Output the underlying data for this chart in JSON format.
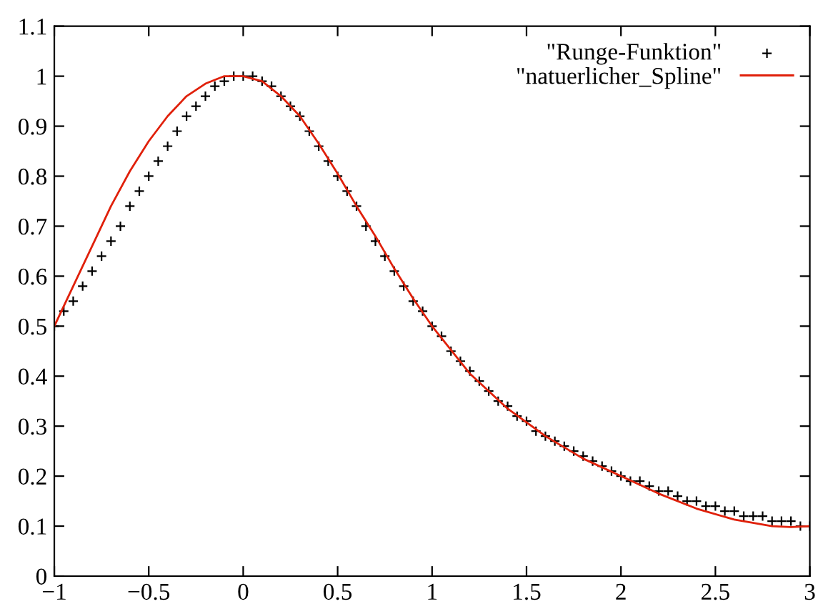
{
  "chart_data": {
    "type": "line",
    "xlim": [
      -1,
      3
    ],
    "ylim": [
      0,
      1.1
    ],
    "xticks": [
      {
        "value": -1,
        "label": "−1"
      },
      {
        "value": -0.5,
        "label": "−0.5"
      },
      0,
      0.5,
      1,
      1.5,
      2,
      2.5,
      3
    ],
    "yticks": [
      0,
      0.1,
      0.2,
      0.3,
      0.4,
      0.5,
      0.6,
      0.7,
      0.8,
      0.9,
      1,
      1.1
    ],
    "grid": false,
    "legend": "top right",
    "series": [
      {
        "name": "\"Runge-Funktion\"",
        "type": "scatter",
        "marker": "cross",
        "color": "#000000",
        "x": [
          -1,
          -0.95,
          -0.9,
          -0.85,
          -0.8,
          -0.75,
          -0.7,
          -0.65,
          -0.6,
          -0.55,
          -0.5,
          -0.45,
          -0.4,
          -0.35,
          -0.3,
          -0.25,
          -0.2,
          -0.15,
          -0.1,
          -0.05,
          0,
          0.05,
          0.1,
          0.15,
          0.2,
          0.25,
          0.3,
          0.35,
          0.4,
          0.45,
          0.5,
          0.55,
          0.6,
          0.65,
          0.7,
          0.75,
          0.8,
          0.85,
          0.9,
          0.95,
          1,
          1.05,
          1.1,
          1.15,
          1.2,
          1.25,
          1.3,
          1.35,
          1.4,
          1.45,
          1.5,
          1.55,
          1.6,
          1.65,
          1.7,
          1.75,
          1.8,
          1.85,
          1.9,
          1.95,
          2,
          2.05,
          2.1,
          2.15,
          2.2,
          2.25,
          2.3,
          2.35,
          2.4,
          2.45,
          2.5,
          2.55,
          2.6,
          2.65,
          2.7,
          2.75,
          2.8,
          2.85,
          2.9,
          2.95,
          3
        ],
        "values": [
          0.5,
          0.53,
          0.55,
          0.58,
          0.61,
          0.64,
          0.67,
          0.7,
          0.74,
          0.77,
          0.8,
          0.83,
          0.86,
          0.89,
          0.92,
          0.94,
          0.96,
          0.98,
          0.99,
          1,
          1,
          1,
          0.99,
          0.98,
          0.96,
          0.94,
          0.92,
          0.89,
          0.86,
          0.83,
          0.8,
          0.77,
          0.74,
          0.7,
          0.67,
          0.64,
          0.61,
          0.58,
          0.55,
          0.53,
          0.5,
          0.48,
          0.45,
          0.43,
          0.41,
          0.39,
          0.37,
          0.35,
          0.34,
          0.32,
          0.31,
          0.29,
          0.28,
          0.27,
          0.26,
          0.25,
          0.24,
          0.23,
          0.22,
          0.21,
          0.2,
          0.19,
          0.19,
          0.18,
          0.17,
          0.17,
          0.16,
          0.15,
          0.15,
          0.14,
          0.14,
          0.13,
          0.13,
          0.12,
          0.12,
          0.12,
          0.11,
          0.11,
          0.11,
          0.1,
          0.1
        ]
      },
      {
        "name": "\"natuerlicher_Spline\"",
        "marker": "none",
        "line_style": "solid",
        "color": "#e0200a",
        "x": [
          -1,
          -0.9,
          -0.8,
          -0.7,
          -0.6,
          -0.5,
          -0.4,
          -0.3,
          -0.2,
          -0.1,
          0,
          0.1,
          0.2,
          0.3,
          0.4,
          0.5,
          0.6,
          0.7,
          0.8,
          0.9,
          1,
          1.2,
          1.4,
          1.6,
          1.8,
          2,
          2.2,
          2.4,
          2.6,
          2.8,
          2.9,
          3
        ],
        "values": [
          0.5,
          0.58,
          0.66,
          0.74,
          0.81,
          0.87,
          0.92,
          0.96,
          0.985,
          1,
          1,
          0.99,
          0.96,
          0.92,
          0.865,
          0.805,
          0.74,
          0.68,
          0.615,
          0.555,
          0.5,
          0.405,
          0.335,
          0.28,
          0.235,
          0.2,
          0.165,
          0.135,
          0.113,
          0.1,
          0.098,
          0.1
        ]
      }
    ]
  }
}
